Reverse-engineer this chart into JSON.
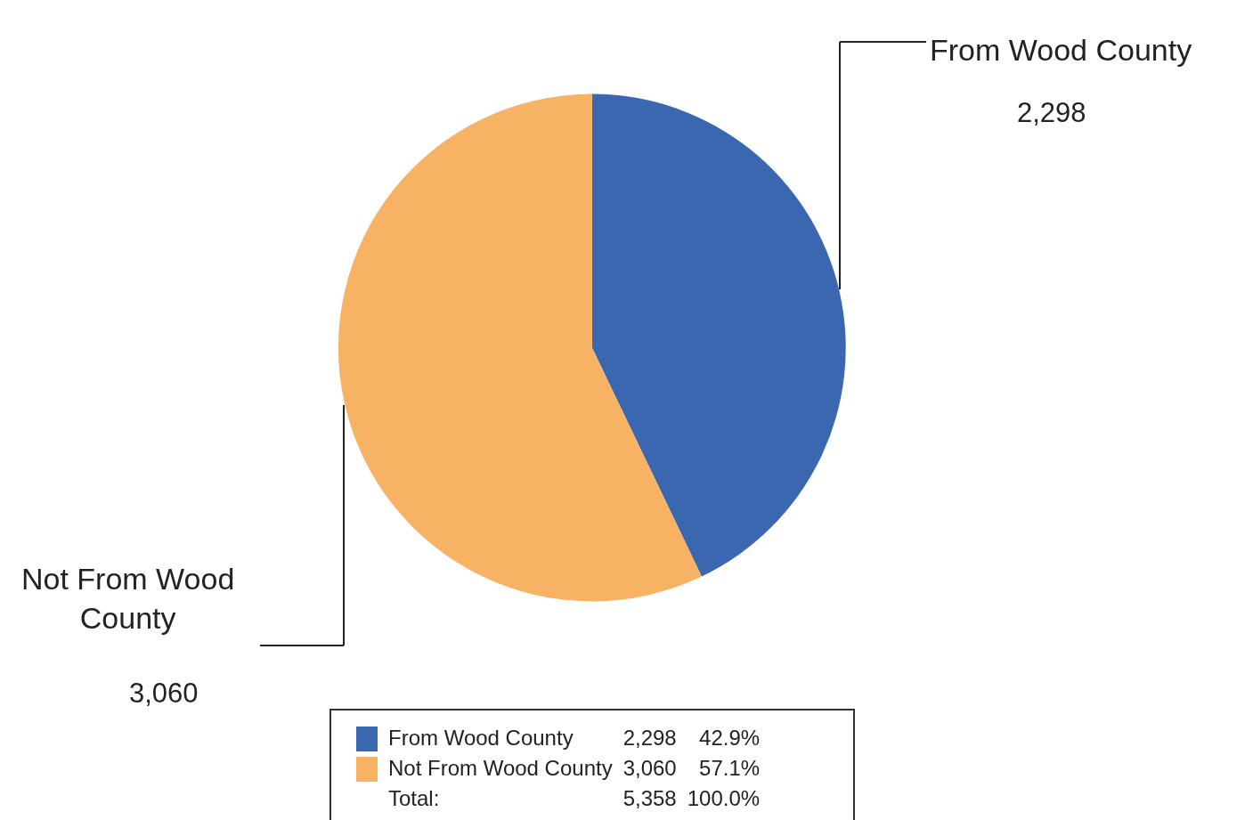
{
  "chart_data": {
    "type": "pie",
    "categories": [
      "From Wood County",
      "Not From Wood County"
    ],
    "values": [
      2298,
      3060
    ],
    "colors": [
      "#3a67b0",
      "#f8b264"
    ],
    "data_labels": true,
    "legend": "bottom",
    "value_labels": [
      "2,298",
      "3,060"
    ],
    "annotations": [
      "42.9%",
      "57.1%",
      "Total:"
    ],
    "totals": [
      "5,358",
      "100.0%"
    ]
  }
}
